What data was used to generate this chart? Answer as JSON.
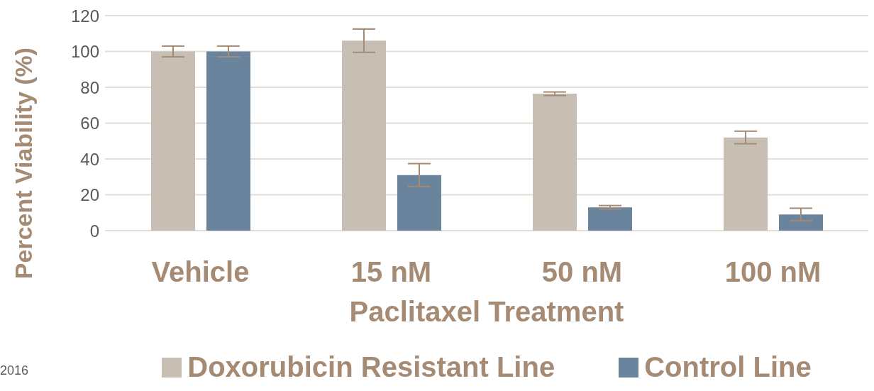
{
  "chart_data": {
    "type": "bar",
    "xlabel": "Paclitaxel Treatment",
    "ylabel": "Percent Viability (%)",
    "categories": [
      "Vehicle",
      "15 nM",
      "50 nM",
      "100 nM"
    ],
    "series": [
      {
        "name": "Doxorubicin Resistant Line",
        "color": "#c7bfb3",
        "values": [
          100,
          106,
          76.4,
          52
        ],
        "errors": [
          3,
          6.5,
          1,
          3.5
        ]
      },
      {
        "name": "Control Line",
        "color": "#6a849e",
        "values": [
          100,
          31,
          13,
          9
        ],
        "errors": [
          3,
          6.4,
          1,
          3.5
        ]
      }
    ],
    "ylim": [
      0,
      120
    ],
    "yticks": [
      0,
      20,
      40,
      60,
      80,
      100,
      120
    ],
    "grid": "y",
    "legend": "bottom",
    "annotations": [
      "2016"
    ]
  }
}
